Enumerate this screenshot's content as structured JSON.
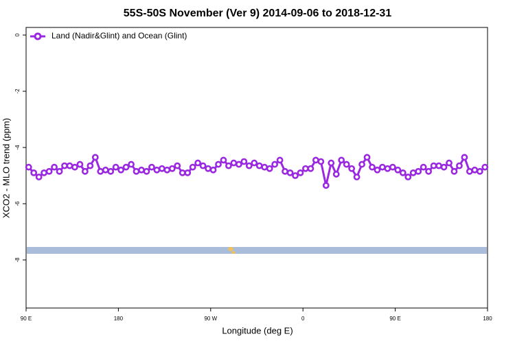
{
  "chart_data": {
    "type": "line",
    "title": "55S-50S November (Ver 9)   2014-09-06 to 2018-12-31",
    "x_label": "Longitude (deg E)",
    "y_label": "XCO2 - MLO trend (ppm)",
    "xlim": [
      90,
      540
    ],
    "xticks": [
      {
        "value": 90,
        "label": "90 E"
      },
      {
        "value": 180,
        "label": "180"
      },
      {
        "value": 270,
        "label": "90 W"
      },
      {
        "value": 360,
        "label": "0"
      },
      {
        "value": 450,
        "label": "90 E"
      },
      {
        "value": 540,
        "label": "180"
      }
    ],
    "ylim": [
      -9.71,
      0.27
    ],
    "yticks": [
      0,
      -2,
      -4,
      -6,
      -8
    ],
    "legend": "top-left",
    "x": [
      92.5,
      97.5,
      102.5,
      107.5,
      112.5,
      117.5,
      122.5,
      127.5,
      132.5,
      137.5,
      142.5,
      147.5,
      152.5,
      157.5,
      162.5,
      167.5,
      172.5,
      177.5,
      182.5,
      187.5,
      192.5,
      197.5,
      202.5,
      207.5,
      212.5,
      217.5,
      222.5,
      227.5,
      232.5,
      237.5,
      242.5,
      247.5,
      252.5,
      257.5,
      262.5,
      267.5,
      272.5,
      277.5,
      282.5,
      287.5,
      292.5,
      297.5,
      302.5,
      307.5,
      312.5,
      317.5,
      322.5,
      327.5,
      332.5,
      337.5,
      342.5,
      347.5,
      352.5,
      357.5,
      362.5,
      367.5,
      372.5,
      377.5,
      382.5,
      387.5,
      392.5,
      397.5,
      402.5,
      407.5,
      412.5,
      417.5,
      422.5,
      427.5,
      432.5,
      437.5,
      442.5,
      447.5,
      452.5,
      457.5,
      462.5,
      467.5,
      472.5,
      477.5,
      482.5,
      487.5,
      492.5,
      497.5,
      502.5,
      507.5,
      512.5,
      517.5,
      522.5,
      527.5,
      532.5,
      537.5
    ],
    "series": [
      {
        "name": "Land (Nadir&Glint) and Ocean (Glint)",
        "color": "#9a28e0",
        "values": [
          -4.7,
          -4.9,
          -5.05,
          -4.9,
          -4.85,
          -4.7,
          -4.85,
          -4.65,
          -4.65,
          -4.7,
          -4.6,
          -4.85,
          -4.65,
          -4.35,
          -4.85,
          -4.8,
          -4.85,
          -4.7,
          -4.8,
          -4.7,
          -4.6,
          -4.85,
          -4.8,
          -4.85,
          -4.7,
          -4.8,
          -4.75,
          -4.8,
          -4.75,
          -4.65,
          -4.9,
          -4.9,
          -4.7,
          -4.55,
          -4.65,
          -4.75,
          -4.8,
          -4.6,
          -4.45,
          -4.65,
          -4.55,
          -4.6,
          -4.5,
          -4.65,
          -4.55,
          -4.65,
          -4.7,
          -4.75,
          -4.6,
          -4.45,
          -4.85,
          -4.9,
          -5.0,
          -4.9,
          -4.75,
          -4.75,
          -4.45,
          -4.5,
          -5.35,
          -4.55,
          -4.95,
          -4.45,
          -4.6,
          -4.75,
          -5.05,
          -4.6,
          -4.35,
          -4.7,
          -4.8,
          -4.7,
          -4.75,
          -4.7,
          -4.8,
          -4.9,
          -5.05,
          -4.9,
          -4.85,
          -4.7,
          -4.85,
          -4.65,
          -4.65,
          -4.7,
          -4.55,
          -4.85,
          -4.65,
          -4.35,
          -4.85,
          -4.8,
          -4.85,
          -4.7
        ]
      }
    ]
  }
}
